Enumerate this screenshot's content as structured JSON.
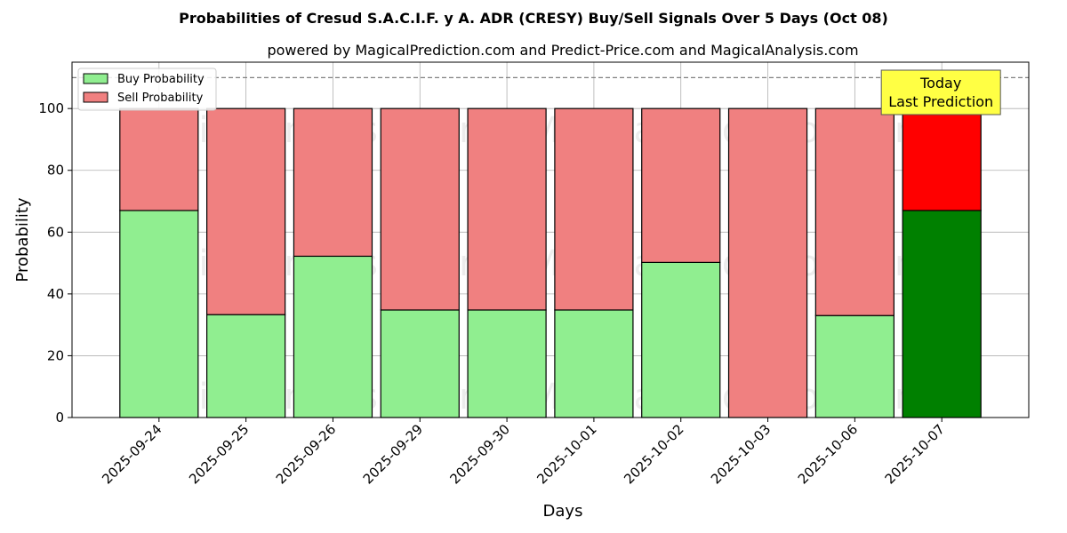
{
  "chart_data": {
    "type": "bar",
    "stacked": true,
    "title": "Probabilities of Cresud S.A.C.I.F. y A. ADR (CRESY) Buy/Sell Signals Over 5 Days (Oct 08)",
    "subtitle": "powered by MagicalPrediction.com and Predict-Price.com and MagicalAnalysis.com",
    "xlabel": "Days",
    "ylabel": "Probability",
    "ylim": [
      0,
      115
    ],
    "yticks": [
      0,
      20,
      40,
      60,
      80,
      100
    ],
    "grid": true,
    "legend_position": "top-left",
    "reference_line": 110,
    "categories": [
      "2025-09-24",
      "2025-09-25",
      "2025-09-26",
      "2025-09-29",
      "2025-09-30",
      "2025-10-01",
      "2025-10-02",
      "2025-10-03",
      "2025-10-06",
      "2025-10-07"
    ],
    "series": [
      {
        "name": "Buy Probability",
        "color": "#90ee90",
        "highlight_color": "#008000",
        "values": [
          67,
          33.3,
          52.2,
          34.8,
          34.8,
          34.8,
          50.2,
          0,
          33,
          67
        ]
      },
      {
        "name": "Sell Probability",
        "color": "#f08080",
        "highlight_color": "#ff0000",
        "values": [
          33,
          66.7,
          47.8,
          65.2,
          65.2,
          65.2,
          49.8,
          100,
          67,
          33
        ]
      }
    ],
    "highlight_index": 9,
    "annotation": {
      "lines": [
        "Today",
        "Last Prediction"
      ],
      "color": "#ffff44"
    },
    "watermarks": [
      "MagicalAnalysis.com",
      "MagicalPrediction.com"
    ]
  }
}
